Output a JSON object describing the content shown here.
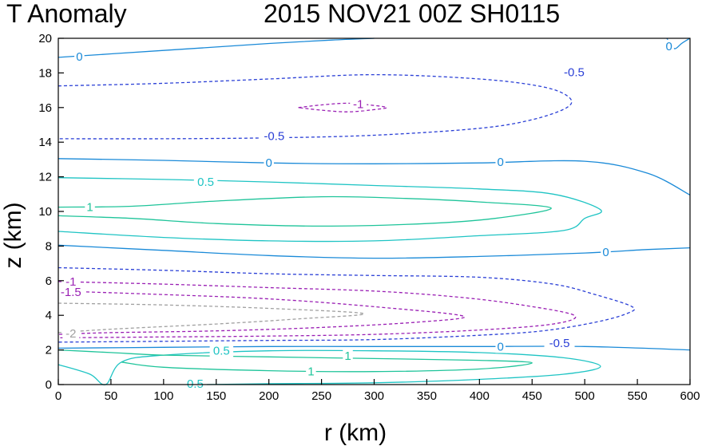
{
  "chart_data": {
    "type": "contour",
    "title_left": "T Anomaly",
    "title_right": "2015 NOV21 00Z   SH0115",
    "xlabel": "r (km)",
    "ylabel": "z (km)",
    "xlim": [
      0,
      600
    ],
    "ylim": [
      0,
      20
    ],
    "xticks": [
      "0",
      "50",
      "100",
      "150",
      "200",
      "250",
      "300",
      "350",
      "400",
      "450",
      "500",
      "550",
      "600"
    ],
    "yticks": [
      "0",
      "2",
      "4",
      "6",
      "8",
      "10",
      "12",
      "14",
      "16",
      "18",
      "20"
    ],
    "grid": false,
    "level_colors": {
      "-2": "#a0a0a0",
      "-1.5": "#9a1fb4",
      "-1": "#9a1fb4",
      "-0.5": "#2a3fd6",
      "0": "#1a8ad8",
      "0.5": "#1fc4c4",
      "1": "#1fc49a"
    },
    "contours": [
      {
        "level": 0,
        "dashed": false,
        "points": [
          [
            0,
            18.9
          ],
          [
            50,
            19.1
          ],
          [
            100,
            19.3
          ],
          [
            150,
            19.5
          ],
          [
            200,
            19.7
          ],
          [
            260,
            19.9
          ],
          [
            300,
            20
          ]
        ]
      },
      {
        "level": 0,
        "dashed": false,
        "points": [
          [
            578,
            20
          ],
          [
            582,
            19.6
          ],
          [
            586,
            19.4
          ],
          [
            592,
            19.7
          ],
          [
            600,
            20
          ]
        ]
      },
      {
        "level": -0.5,
        "dashed": true,
        "points": [
          [
            0,
            17.25
          ],
          [
            100,
            17.4
          ],
          [
            200,
            17.65
          ],
          [
            300,
            17.9
          ],
          [
            400,
            17.65
          ],
          [
            460,
            17.2
          ],
          [
            485,
            16.6
          ],
          [
            483,
            16
          ],
          [
            450,
            15.3
          ],
          [
            400,
            14.8
          ],
          [
            300,
            14.4
          ],
          [
            200,
            14.25
          ],
          [
            100,
            14.2
          ],
          [
            0,
            14.2
          ]
        ]
      },
      {
        "level": -1,
        "dashed": true,
        "points": [
          [
            228,
            16
          ],
          [
            250,
            16.15
          ],
          [
            275,
            16.25
          ],
          [
            300,
            16.12
          ],
          [
            312,
            16
          ],
          [
            300,
            15.88
          ],
          [
            275,
            15.75
          ],
          [
            250,
            15.85
          ],
          [
            228,
            16
          ]
        ]
      },
      {
        "level": 0,
        "dashed": false,
        "points": [
          [
            0,
            13.05
          ],
          [
            100,
            12.95
          ],
          [
            200,
            12.8
          ],
          [
            300,
            12.75
          ],
          [
            400,
            12.8
          ],
          [
            500,
            12.9
          ],
          [
            560,
            12.2
          ],
          [
            600,
            10.95
          ]
        ]
      },
      {
        "level": 0.5,
        "dashed": false,
        "points": [
          [
            0,
            11.95
          ],
          [
            100,
            11.85
          ],
          [
            200,
            11.7
          ],
          [
            300,
            11.5
          ],
          [
            400,
            11.3
          ],
          [
            470,
            11
          ],
          [
            515,
            10.1
          ],
          [
            500,
            9.6
          ],
          [
            480,
            8.9
          ],
          [
            400,
            8.6
          ],
          [
            300,
            8.3
          ],
          [
            200,
            8.3
          ],
          [
            100,
            8.5
          ],
          [
            0,
            8.85
          ]
        ]
      },
      {
        "level": 1,
        "dashed": false,
        "points": [
          [
            0,
            10.25
          ],
          [
            70,
            10.3
          ],
          [
            150,
            10.6
          ],
          [
            250,
            10.85
          ],
          [
            330,
            10.75
          ],
          [
            400,
            10.55
          ],
          [
            468,
            10.2
          ],
          [
            415,
            9.6
          ],
          [
            350,
            9.3
          ],
          [
            250,
            9.15
          ],
          [
            150,
            9.3
          ],
          [
            70,
            9.6
          ],
          [
            0,
            9.75
          ]
        ]
      },
      {
        "level": 0,
        "dashed": false,
        "points": [
          [
            0,
            8.05
          ],
          [
            100,
            7.75
          ],
          [
            200,
            7.45
          ],
          [
            300,
            7.3
          ],
          [
            400,
            7.4
          ],
          [
            500,
            7.6
          ],
          [
            560,
            7.8
          ],
          [
            600,
            7.9
          ]
        ]
      },
      {
        "level": -0.5,
        "dashed": true,
        "points": [
          [
            0,
            6.75
          ],
          [
            100,
            6.6
          ],
          [
            200,
            6.4
          ],
          [
            300,
            6.3
          ],
          [
            400,
            6.2
          ],
          [
            470,
            5.8
          ],
          [
            510,
            5.2
          ],
          [
            545,
            4.5
          ],
          [
            540,
            4.1
          ],
          [
            510,
            3.6
          ],
          [
            460,
            3.1
          ],
          [
            400,
            2.85
          ],
          [
            300,
            2.6
          ],
          [
            200,
            2.55
          ],
          [
            100,
            2.5
          ],
          [
            0,
            2.45
          ]
        ]
      },
      {
        "level": -1,
        "dashed": true,
        "points": [
          [
            0,
            5.95
          ],
          [
            100,
            5.8
          ],
          [
            200,
            5.6
          ],
          [
            300,
            5.4
          ],
          [
            380,
            5.05
          ],
          [
            440,
            4.6
          ],
          [
            490,
            4.0
          ],
          [
            470,
            3.5
          ],
          [
            400,
            3.15
          ],
          [
            300,
            2.9
          ],
          [
            200,
            2.8
          ],
          [
            100,
            2.75
          ],
          [
            0,
            2.7
          ]
        ]
      },
      {
        "level": -1.5,
        "dashed": true,
        "points": [
          [
            0,
            5.4
          ],
          [
            100,
            5.2
          ],
          [
            200,
            4.95
          ],
          [
            300,
            4.5
          ],
          [
            385,
            3.95
          ],
          [
            340,
            3.6
          ],
          [
            250,
            3.3
          ],
          [
            150,
            3.1
          ],
          [
            50,
            3.0
          ],
          [
            0,
            2.9
          ]
        ]
      },
      {
        "level": -2,
        "dashed": true,
        "points": [
          [
            0,
            4.7
          ],
          [
            100,
            4.6
          ],
          [
            200,
            4.4
          ],
          [
            290,
            4.1
          ],
          [
            230,
            3.8
          ],
          [
            150,
            3.5
          ],
          [
            50,
            3.2
          ],
          [
            0,
            3.0
          ]
        ]
      },
      {
        "level": 0,
        "dashed": false,
        "points": [
          [
            0,
            2.1
          ],
          [
            100,
            2.15
          ],
          [
            200,
            2.2
          ],
          [
            300,
            2.2
          ],
          [
            400,
            2.2
          ],
          [
            500,
            2.2
          ],
          [
            600,
            2.0
          ]
        ]
      },
      {
        "level": 0.5,
        "dashed": false,
        "points": [
          [
            0,
            1.15
          ],
          [
            30,
            0.6
          ],
          [
            45,
            0
          ],
          [
            60,
            1.3
          ],
          [
            100,
            1.7
          ],
          [
            200,
            1.95
          ],
          [
            300,
            1.95
          ],
          [
            400,
            1.85
          ],
          [
            480,
            1.55
          ],
          [
            515,
            1.05
          ],
          [
            480,
            0.6
          ],
          [
            400,
            0.3
          ],
          [
            300,
            0.1
          ],
          [
            200,
            0.05
          ],
          [
            140,
            0
          ]
        ]
      },
      {
        "level": 1,
        "dashed": false,
        "points": [
          [
            0,
            2.0
          ],
          [
            50,
            1.85
          ],
          [
            100,
            1.7
          ],
          [
            200,
            1.6
          ],
          [
            300,
            1.5
          ],
          [
            400,
            1.4
          ],
          [
            450,
            1.25
          ],
          [
            400,
            0.9
          ],
          [
            300,
            0.75
          ],
          [
            200,
            0.8
          ],
          [
            100,
            1.0
          ],
          [
            60,
            1.3
          ]
        ]
      }
    ],
    "labels": [
      {
        "text": "0",
        "level": 0,
        "x": 20,
        "y": 18.95
      },
      {
        "text": "0",
        "level": 0,
        "x": 580,
        "y": 19.55
      },
      {
        "text": "-0.5",
        "level": -0.5,
        "x": 490,
        "y": 18.05
      },
      {
        "text": "-1",
        "level": -1,
        "x": 285,
        "y": 16.2
      },
      {
        "text": "-0.5",
        "level": -0.5,
        "x": 205,
        "y": 14.35
      },
      {
        "text": "0",
        "level": 0,
        "x": 200,
        "y": 12.8
      },
      {
        "text": "0",
        "level": 0,
        "x": 420,
        "y": 12.85
      },
      {
        "text": "0.5",
        "level": 0.5,
        "x": 140,
        "y": 11.7
      },
      {
        "text": "1",
        "level": 1,
        "x": 30,
        "y": 10.25
      },
      {
        "text": "0",
        "level": 0,
        "x": 520,
        "y": 7.65
      },
      {
        "text": "-1",
        "level": -1,
        "x": 12,
        "y": 5.95
      },
      {
        "text": "-1.5",
        "level": -1.5,
        "x": 12,
        "y": 5.35
      },
      {
        "text": "-2",
        "level": -2,
        "x": 12,
        "y": 2.95
      },
      {
        "text": "-0.5",
        "level": -0.5,
        "x": 476,
        "y": 2.4
      },
      {
        "text": "0",
        "level": 0,
        "x": 420,
        "y": 2.2
      },
      {
        "text": "0.5",
        "level": 0.5,
        "x": 155,
        "y": 1.95
      },
      {
        "text": "1",
        "level": 1,
        "x": 275,
        "y": 1.65
      },
      {
        "text": "1",
        "level": 1,
        "x": 240,
        "y": 0.75
      },
      {
        "text": "0.5",
        "level": 0.5,
        "x": 130,
        "y": 0.05
      }
    ]
  }
}
